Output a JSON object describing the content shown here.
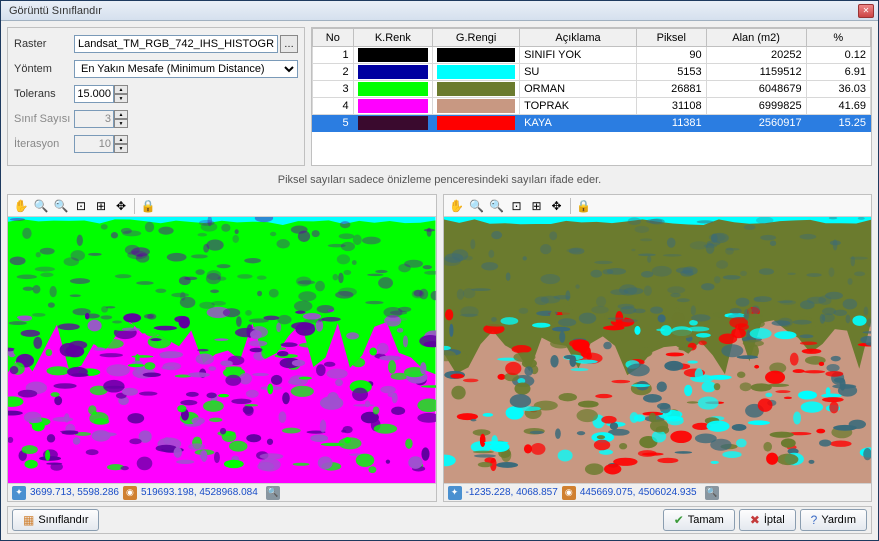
{
  "window": {
    "title": "Görüntü Sınıflandır"
  },
  "params": {
    "raster_label": "Raster",
    "raster_value": "Landsat_TM_RGB_742_IHS_HISTOGRAM",
    "method_label": "Yöntem",
    "method_value": "En Yakın Mesafe (Minimum Distance)",
    "tolerance_label": "Tolerans",
    "tolerance_value": "15.000",
    "class_count_label": "Sınıf Sayısı",
    "class_count_value": "3",
    "iteration_label": "İterasyon",
    "iteration_value": "10"
  },
  "table": {
    "headers": [
      "No",
      "K.Renk",
      "G.Rengi",
      "Açıklama",
      "Piksel",
      "Alan (m2)",
      "%"
    ],
    "rows": [
      {
        "no": "1",
        "source_color": "#000000",
        "display_color": "#000000",
        "desc": "SINIFI YOK",
        "pixel": "90",
        "area": "20252",
        "pct": "0.12",
        "selected": false
      },
      {
        "no": "2",
        "source_color": "#0000a0",
        "display_color": "#00ffff",
        "desc": "SU",
        "pixel": "5153",
        "area": "1159512",
        "pct": "6.91",
        "selected": false
      },
      {
        "no": "3",
        "source_color": "#00ff00",
        "display_color": "#6b7b2e",
        "desc": "ORMAN",
        "pixel": "26881",
        "area": "6048679",
        "pct": "36.03",
        "selected": false
      },
      {
        "no": "4",
        "source_color": "#ff00ff",
        "display_color": "#c89882",
        "desc": "TOPRAK",
        "pixel": "31108",
        "area": "6999825",
        "pct": "41.69",
        "selected": false
      },
      {
        "no": "5",
        "source_color": "#3a0a2e",
        "display_color": "#ff0000",
        "desc": "KAYA",
        "pixel": "11381",
        "area": "2560917",
        "pct": "15.25",
        "selected": true
      }
    ]
  },
  "info_text": "Piksel sayıları sadece önizleme penceresindeki sayıları ifade eder.",
  "left_status": {
    "coord1": "3699.713, 5598.286",
    "coord2": "519693.198, 4528968.084"
  },
  "right_status": {
    "coord1": "-1235.228, 4068.857",
    "coord2": "445669.075, 4506024.935"
  },
  "buttons": {
    "classify": "Sınıflandır",
    "ok": "Tamam",
    "cancel": "İptal",
    "help": "Yardım"
  },
  "left_img_colors": {
    "sky": "#00ffff",
    "forest": "#00ff00",
    "mid": "#a050d0",
    "low": "#ff00ff",
    "dark": "#6000a0"
  },
  "right_img_colors": {
    "sky": "#00ffff",
    "forest": "#6b7b2e",
    "soil": "#c89882",
    "rock": "#ff0000",
    "accent": "#3a6a7a"
  }
}
